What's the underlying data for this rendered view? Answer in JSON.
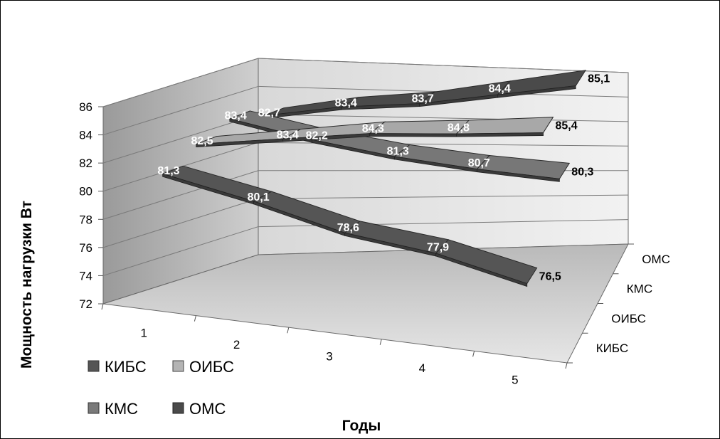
{
  "chart_data": {
    "type": "line",
    "title": "",
    "xlabel": "Годы",
    "ylabel": "Мощность нагрузки Вт",
    "categories": [
      "1",
      "2",
      "3",
      "4",
      "5"
    ],
    "ylim": [
      72,
      86
    ],
    "yticks": [
      "72",
      "74",
      "76",
      "78",
      "80",
      "82",
      "84",
      "86"
    ],
    "depth_labels": [
      "КИБС",
      "ОИБС",
      "КМС",
      "ОМС"
    ],
    "series": [
      {
        "name": "КИБС",
        "values": [
          81.3,
          80.1,
          78.6,
          77.9,
          76.5
        ],
        "labels": [
          "81,3",
          "80,1",
          "78,6",
          "77,9",
          "76,5"
        ],
        "color": "#555555"
      },
      {
        "name": "ОИБС",
        "values": [
          82.5,
          83.4,
          84.3,
          84.8,
          85.4
        ],
        "labels": [
          "82,5",
          "83,4",
          "84,3",
          "84,8",
          "85,4"
        ],
        "color": "#a8a8a8"
      },
      {
        "name": "КМС",
        "values": [
          83.4,
          82.2,
          81.3,
          80.7,
          80.3
        ],
        "labels": [
          "83,4",
          "82,2",
          "81,3",
          "80,7",
          "80,3"
        ],
        "color": "#777777"
      },
      {
        "name": "ОМС",
        "values": [
          82.7,
          83.4,
          83.7,
          84.4,
          85.1
        ],
        "labels": [
          "82,7",
          "83,4",
          "83,7",
          "84,4",
          "85,1"
        ],
        "color": "#4a4a4a"
      }
    ],
    "grid": true,
    "legend": "bottom-left"
  },
  "legend": {
    "items": [
      {
        "label": "КИБС",
        "color": "#555555"
      },
      {
        "label": "ОИБС",
        "color": "#b4b4b4"
      },
      {
        "label": "КМС",
        "color": "#7a7a7a"
      },
      {
        "label": "ОМС",
        "color": "#4a4a4a"
      }
    ]
  }
}
